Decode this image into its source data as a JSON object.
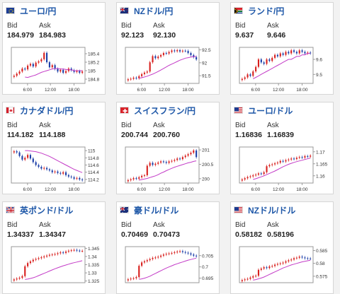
{
  "labels": {
    "bid": "Bid",
    "ask": "Ask"
  },
  "colors": {
    "title": "#1f58a8",
    "up": "#d8201e",
    "down": "#1d3fa8",
    "ma": "#c33bc7"
  },
  "cards": [
    {
      "name": "ユーロ/円",
      "flag": "eu-flag",
      "bid": "184.979",
      "ask": "184.983",
      "chart_data": {
        "type": "candlestick",
        "x_ticks": [
          "6:00",
          "12:00",
          "18:00"
        ],
        "y_ticks": [
          "184.8",
          "185",
          "185.2",
          "185.4"
        ],
        "ylim": [
          184.7,
          185.55
        ],
        "closes": [
          184.88,
          184.93,
          184.98,
          185.05,
          185.03,
          185.12,
          185.16,
          185.1,
          185.19,
          185.22,
          185.27,
          185.42,
          185.2,
          185.08,
          185.13,
          185.04,
          184.98,
          185.02,
          184.95,
          184.99,
          185.05,
          185.01,
          184.97,
          184.99,
          184.95,
          184.98
        ],
        "ma": [
          184.85,
          184.84,
          184.86,
          184.88,
          184.9,
          184.93,
          184.96,
          184.98,
          185.0,
          185.02,
          185.04,
          185.05,
          185.05,
          185.04,
          185.04,
          185.03,
          185.02,
          185.02,
          185.0,
          185.0,
          185.0,
          185.0
        ]
      }
    },
    {
      "name": "NZドル/円",
      "flag": "nz-flag",
      "bid": "92.123",
      "ask": "92.130",
      "chart_data": {
        "type": "candlestick",
        "x_ticks": [
          "6:00",
          "12:00",
          "18:00"
        ],
        "y_ticks": [
          "91.5",
          "92",
          "92.5"
        ],
        "ylim": [
          91.2,
          92.6
        ],
        "closes": [
          91.36,
          91.38,
          91.42,
          91.4,
          91.48,
          91.56,
          91.62,
          91.66,
          92.02,
          92.26,
          92.18,
          92.24,
          92.3,
          92.38,
          92.36,
          92.42,
          92.48,
          92.45,
          92.49,
          92.44,
          92.47,
          92.46,
          92.38,
          92.3,
          92.22,
          92.13
        ],
        "ma": [
          91.4,
          91.42,
          91.45,
          91.48,
          91.52,
          91.56,
          91.61,
          91.66,
          91.72,
          91.78,
          91.84,
          91.9,
          91.95,
          92.0,
          92.05,
          92.1,
          92.14,
          92.18,
          92.2,
          92.22,
          92.24,
          92.25
        ]
      }
    },
    {
      "name": "ランド/円",
      "flag": "za-flag",
      "bid": "9.637",
      "ask": "9.646",
      "chart_data": {
        "type": "candlestick",
        "x_ticks": [
          "6:00",
          "12:00",
          "18:00"
        ],
        "y_ticks": [
          "9.5",
          "9.6"
        ],
        "ylim": [
          9.44,
          9.68
        ],
        "closes": [
          9.47,
          9.48,
          9.5,
          9.49,
          9.52,
          9.55,
          9.6,
          9.58,
          9.57,
          9.6,
          9.59,
          9.61,
          9.63,
          9.62,
          9.64,
          9.63,
          9.65,
          9.64,
          9.66,
          9.65,
          9.64,
          9.66,
          9.65,
          9.64,
          9.645,
          9.64
        ],
        "ma": [
          9.47,
          9.48,
          9.49,
          9.5,
          9.51,
          9.52,
          9.53,
          9.54,
          9.55,
          9.56,
          9.57,
          9.58,
          9.59,
          9.6,
          9.6,
          9.61,
          9.62,
          9.62,
          9.63,
          9.63,
          9.64,
          9.64
        ]
      }
    },
    {
      "name": "カナダドル/円",
      "flag": "ca-flag",
      "bid": "114.182",
      "ask": "114.188",
      "chart_data": {
        "type": "candlestick",
        "x_ticks": [
          "6:00",
          "12:00",
          "18:00"
        ],
        "y_ticks": [
          "114.2",
          "114.4",
          "114.6",
          "114.8",
          "115"
        ],
        "ylim": [
          114.1,
          115.1
        ],
        "closes": [
          114.98,
          114.95,
          114.85,
          114.75,
          114.8,
          114.88,
          114.78,
          114.68,
          114.6,
          114.55,
          114.5,
          114.52,
          114.48,
          114.45,
          114.4,
          114.42,
          114.38,
          114.36,
          114.4,
          114.32,
          114.28,
          114.26,
          114.22,
          114.24,
          114.2,
          114.18
        ],
        "ma": [
          115.0,
          115.0,
          114.99,
          114.98,
          114.97,
          114.95,
          114.93,
          114.9,
          114.87,
          114.84,
          114.8,
          114.76,
          114.72,
          114.68,
          114.64,
          114.6,
          114.56,
          114.52,
          114.48,
          114.45,
          114.42,
          114.39
        ]
      }
    },
    {
      "name": "スイスフラン/円",
      "flag": "ch-flag",
      "bid": "200.744",
      "ask": "200.760",
      "chart_data": {
        "type": "candlestick",
        "x_ticks": [
          "6:00",
          "12:00",
          "18:00"
        ],
        "y_ticks": [
          "200",
          "200.5",
          "201"
        ],
        "ylim": [
          199.85,
          201.1
        ],
        "closes": [
          199.95,
          199.98,
          200.02,
          200.0,
          200.05,
          200.1,
          200.12,
          200.45,
          200.55,
          200.48,
          200.52,
          200.56,
          200.6,
          200.58,
          200.55,
          200.6,
          200.62,
          200.65,
          200.7,
          200.68,
          200.75,
          200.8,
          200.85,
          200.9,
          200.98,
          200.75
        ],
        "ma": [
          199.95,
          199.97,
          199.99,
          200.01,
          200.04,
          200.07,
          200.1,
          200.14,
          200.19,
          200.23,
          200.28,
          200.32,
          200.36,
          200.4,
          200.43,
          200.46,
          200.49,
          200.52,
          200.55,
          200.57,
          200.6,
          200.62
        ]
      }
    },
    {
      "name": "ユーロ/ドル",
      "flag": "us-flag",
      "bid": "1.16836",
      "ask": "1.16839",
      "chart_data": {
        "type": "candlestick",
        "x_ticks": [
          "6:00",
          "12:00",
          "18:00"
        ],
        "y_ticks": [
          "1.16",
          "1.165",
          "1.17"
        ],
        "ylim": [
          1.157,
          1.172
        ],
        "closes": [
          1.1585,
          1.159,
          1.1595,
          1.1598,
          1.1602,
          1.1605,
          1.161,
          1.1608,
          1.1615,
          1.164,
          1.1645,
          1.1648,
          1.1652,
          1.1655,
          1.1662,
          1.166,
          1.1665,
          1.1668,
          1.1672,
          1.167,
          1.1675,
          1.1678,
          1.1676,
          1.1682,
          1.168,
          1.1684
        ],
        "ma": [
          1.1585,
          1.1588,
          1.1592,
          1.1596,
          1.16,
          1.1605,
          1.161,
          1.1615,
          1.162,
          1.1626,
          1.1632,
          1.1638,
          1.1643,
          1.1648,
          1.1652,
          1.1656,
          1.1659,
          1.1662,
          1.1665,
          1.1668,
          1.1671,
          1.1674
        ]
      }
    },
    {
      "name": "英ポンド/ドル",
      "flag": "uk-flag",
      "bid": "1.34337",
      "ask": "1.34347",
      "chart_data": {
        "type": "candlestick",
        "x_ticks": [],
        "y_ticks": [
          "1.325",
          "1.33",
          "1.335",
          "1.34",
          "1.345"
        ],
        "ylim": [
          1.324,
          1.346
        ],
        "closes": [
          1.326,
          1.3265,
          1.327,
          1.328,
          1.334,
          1.336,
          1.337,
          1.338,
          1.3385,
          1.339,
          1.3395,
          1.34,
          1.3405,
          1.341,
          1.3412,
          1.3415,
          1.342,
          1.3425,
          1.3422,
          1.343,
          1.3435,
          1.3438,
          1.344,
          1.3436,
          1.3434,
          1.3434
        ],
        "ma": [
          1.326,
          1.3262,
          1.3266,
          1.327,
          1.3276,
          1.3283,
          1.329,
          1.3297,
          1.3304,
          1.3311,
          1.3318,
          1.3325,
          1.3331,
          1.3337,
          1.3343,
          1.3348,
          1.3353,
          1.3358,
          1.3362,
          1.3366,
          1.337,
          1.3374
        ]
      }
    },
    {
      "name": "豪ドル/ドル",
      "flag": "au-flag",
      "bid": "0.70469",
      "ask": "0.70473",
      "chart_data": {
        "type": "candlestick",
        "x_ticks": [],
        "y_ticks": [
          "0.695",
          "0.7",
          "0.705"
        ],
        "ylim": [
          0.693,
          0.709
        ],
        "closes": [
          0.6945,
          0.6948,
          0.695,
          0.6955,
          0.7005,
          0.702,
          0.7025,
          0.703,
          0.7035,
          0.704,
          0.7042,
          0.7045,
          0.705,
          0.7055,
          0.7058,
          0.706,
          0.7062,
          0.7065,
          0.7068,
          0.707,
          0.7066,
          0.7063,
          0.706,
          0.7055,
          0.705,
          0.7047
        ],
        "ma": [
          0.6945,
          0.6947,
          0.695,
          0.6954,
          0.6959,
          0.6965,
          0.6971,
          0.6977,
          0.6983,
          0.6989,
          0.6995,
          0.7,
          0.7005,
          0.701,
          0.7014,
          0.7018,
          0.7022,
          0.7026,
          0.703,
          0.7033,
          0.7036,
          0.7039
        ]
      }
    },
    {
      "name": "NZドル/ドル",
      "flag": "us-flag",
      "bid": "0.58182",
      "ask": "0.58196",
      "chart_data": {
        "type": "candlestick",
        "x_ticks": [],
        "y_ticks": [
          "0.575",
          "0.58",
          "0.585"
        ],
        "ylim": [
          0.5725,
          0.5865
        ],
        "closes": [
          0.5735,
          0.5738,
          0.574,
          0.5745,
          0.575,
          0.5752,
          0.5775,
          0.578,
          0.5785,
          0.5782,
          0.5788,
          0.579,
          0.5795,
          0.5798,
          0.58,
          0.5803,
          0.5808,
          0.5812,
          0.5815,
          0.582,
          0.5822,
          0.5826,
          0.5823,
          0.582,
          0.5819,
          0.5818
        ],
        "ma": [
          0.5735,
          0.5737,
          0.574,
          0.5743,
          0.5747,
          0.5752,
          0.5757,
          0.5762,
          0.5767,
          0.5772,
          0.5777,
          0.5782,
          0.5786,
          0.579,
          0.5794,
          0.5797,
          0.58,
          0.5803,
          0.5806,
          0.5808,
          0.581,
          0.5812
        ]
      }
    }
  ]
}
